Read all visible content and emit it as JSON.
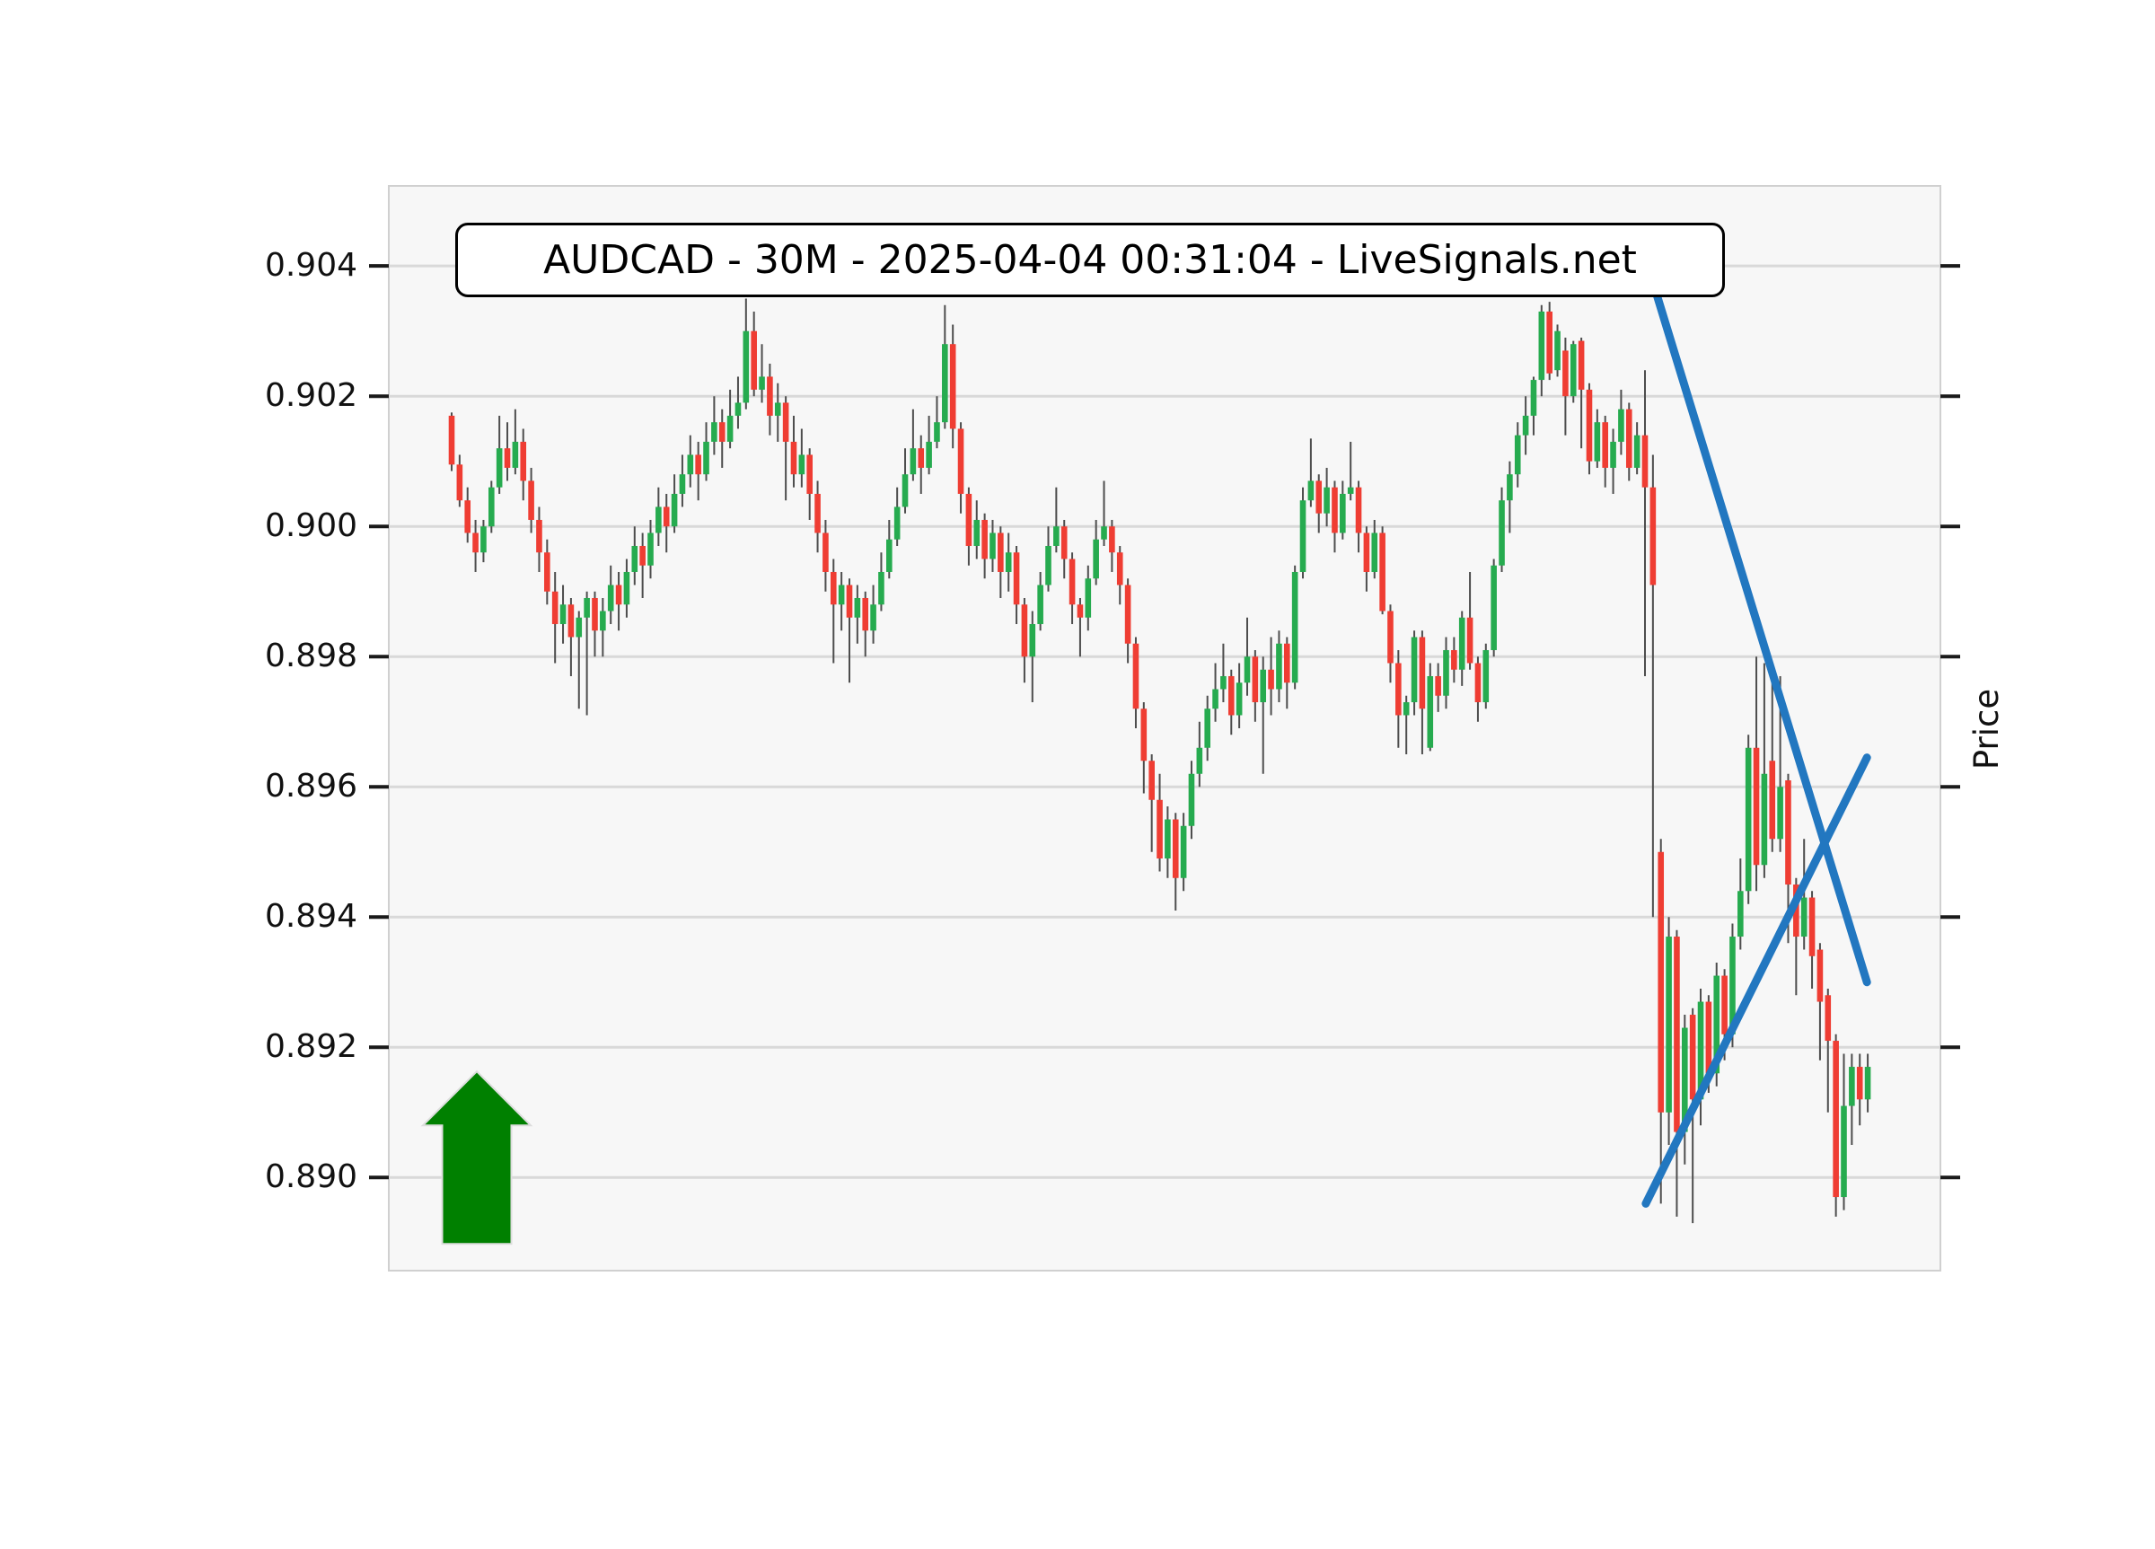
{
  "title": "AUDCAD - 30M - 2025-04-04 00:31:04 - LiveSignals.net",
  "y_axis": {
    "label": "Price",
    "tick_labels": [
      "0.904",
      "0.902",
      "0.900",
      "0.898",
      "0.896",
      "0.894",
      "0.892",
      "0.890"
    ]
  },
  "chart_data": {
    "type": "candlestick",
    "symbol": "AUDCAD",
    "timeframe": "30M",
    "timestamp": "2025-04-04 00:31:04",
    "source": "LiveSignals.net",
    "ylabel": "Price",
    "xlabel": "",
    "grid": true,
    "ylim": [
      0.88857,
      0.90523
    ],
    "yticks": [
      0.89,
      0.892,
      0.894,
      0.896,
      0.898,
      0.9,
      0.902,
      0.904
    ],
    "candles": [
      [
        0.9017,
        0.90175,
        0.90085,
        0.90095
      ],
      [
        0.90095,
        0.9011,
        0.9003,
        0.9004
      ],
      [
        0.9004,
        0.9006,
        0.89975,
        0.8999
      ],
      [
        0.8999,
        0.9001,
        0.8993,
        0.8996
      ],
      [
        0.8996,
        0.9001,
        0.89945,
        0.9
      ],
      [
        0.9,
        0.9007,
        0.8999,
        0.9006
      ],
      [
        0.9006,
        0.9017,
        0.9005,
        0.9012
      ],
      [
        0.9012,
        0.9016,
        0.9007,
        0.9009
      ],
      [
        0.9009,
        0.9018,
        0.9008,
        0.9013
      ],
      [
        0.9013,
        0.9015,
        0.9004,
        0.9007
      ],
      [
        0.9007,
        0.9009,
        0.8999,
        0.9001
      ],
      [
        0.9001,
        0.9003,
        0.8993,
        0.8996
      ],
      [
        0.8996,
        0.8998,
        0.8988,
        0.899
      ],
      [
        0.899,
        0.8993,
        0.8979,
        0.8985
      ],
      [
        0.8985,
        0.8991,
        0.8982,
        0.8988
      ],
      [
        0.8988,
        0.8989,
        0.8977,
        0.8983
      ],
      [
        0.8983,
        0.8987,
        0.8972,
        0.8986
      ],
      [
        0.8986,
        0.899,
        0.8971,
        0.8989
      ],
      [
        0.8989,
        0.899,
        0.898,
        0.8984
      ],
      [
        0.8984,
        0.8989,
        0.898,
        0.8987
      ],
      [
        0.8987,
        0.8994,
        0.8985,
        0.8991
      ],
      [
        0.8991,
        0.8993,
        0.8984,
        0.8988
      ],
      [
        0.8988,
        0.8995,
        0.8986,
        0.8993
      ],
      [
        0.8993,
        0.9,
        0.8991,
        0.8997
      ],
      [
        0.8997,
        0.8999,
        0.8989,
        0.8994
      ],
      [
        0.8994,
        0.9001,
        0.8992,
        0.8999
      ],
      [
        0.8999,
        0.9006,
        0.8997,
        0.9003
      ],
      [
        0.9003,
        0.9005,
        0.8996,
        0.9
      ],
      [
        0.9,
        0.9008,
        0.8999,
        0.9005
      ],
      [
        0.9005,
        0.9011,
        0.9003,
        0.9008
      ],
      [
        0.9008,
        0.9014,
        0.9006,
        0.9011
      ],
      [
        0.9011,
        0.9013,
        0.9004,
        0.9008
      ],
      [
        0.9008,
        0.9016,
        0.9007,
        0.9013
      ],
      [
        0.9013,
        0.902,
        0.9011,
        0.9016
      ],
      [
        0.9016,
        0.9018,
        0.9009,
        0.9013
      ],
      [
        0.9013,
        0.9021,
        0.9012,
        0.9017
      ],
      [
        0.9017,
        0.9023,
        0.9015,
        0.9019
      ],
      [
        0.9019,
        0.9035,
        0.9018,
        0.903
      ],
      [
        0.903,
        0.9033,
        0.902,
        0.9021
      ],
      [
        0.9021,
        0.9028,
        0.9019,
        0.9023
      ],
      [
        0.9023,
        0.9025,
        0.9014,
        0.9017
      ],
      [
        0.9017,
        0.9022,
        0.9013,
        0.9019
      ],
      [
        0.9019,
        0.902,
        0.9004,
        0.9013
      ],
      [
        0.9013,
        0.9017,
        0.9006,
        0.9008
      ],
      [
        0.9008,
        0.9015,
        0.9006,
        0.9011
      ],
      [
        0.9011,
        0.9012,
        0.9001,
        0.9005
      ],
      [
        0.9005,
        0.9007,
        0.8996,
        0.8999
      ],
      [
        0.8999,
        0.9001,
        0.899,
        0.8993
      ],
      [
        0.8993,
        0.8995,
        0.8979,
        0.8988
      ],
      [
        0.8988,
        0.8993,
        0.8984,
        0.8991
      ],
      [
        0.8991,
        0.8992,
        0.8976,
        0.8986
      ],
      [
        0.8986,
        0.8991,
        0.8982,
        0.8989
      ],
      [
        0.8989,
        0.899,
        0.898,
        0.8984
      ],
      [
        0.8984,
        0.8991,
        0.8982,
        0.8988
      ],
      [
        0.8988,
        0.8996,
        0.8987,
        0.8993
      ],
      [
        0.8993,
        0.9001,
        0.8992,
        0.8998
      ],
      [
        0.8998,
        0.9006,
        0.8997,
        0.9003
      ],
      [
        0.9003,
        0.9012,
        0.9002,
        0.9008
      ],
      [
        0.9008,
        0.9018,
        0.9007,
        0.9012
      ],
      [
        0.9012,
        0.9014,
        0.9005,
        0.9009
      ],
      [
        0.9009,
        0.9017,
        0.9008,
        0.9013
      ],
      [
        0.9013,
        0.902,
        0.9012,
        0.9016
      ],
      [
        0.9016,
        0.9034,
        0.9015,
        0.9028
      ],
      [
        0.9028,
        0.9031,
        0.9012,
        0.9015
      ],
      [
        0.9015,
        0.9016,
        0.9002,
        0.9005
      ],
      [
        0.9005,
        0.9006,
        0.8994,
        0.8997
      ],
      [
        0.8997,
        0.9004,
        0.8995,
        0.9001
      ],
      [
        0.9001,
        0.9002,
        0.8992,
        0.8995
      ],
      [
        0.8995,
        0.9001,
        0.8993,
        0.8999
      ],
      [
        0.8999,
        0.9,
        0.8989,
        0.8993
      ],
      [
        0.8993,
        0.8999,
        0.899,
        0.8996
      ],
      [
        0.8996,
        0.8997,
        0.8985,
        0.8988
      ],
      [
        0.8988,
        0.8989,
        0.8976,
        0.898
      ],
      [
        0.898,
        0.8987,
        0.8973,
        0.8985
      ],
      [
        0.8985,
        0.8993,
        0.8984,
        0.8991
      ],
      [
        0.8991,
        0.9,
        0.899,
        0.8997
      ],
      [
        0.8997,
        0.9006,
        0.8996,
        0.9
      ],
      [
        0.9,
        0.9001,
        0.8992,
        0.8995
      ],
      [
        0.8995,
        0.8996,
        0.8985,
        0.8988
      ],
      [
        0.8988,
        0.8989,
        0.898,
        0.8986
      ],
      [
        0.8986,
        0.8994,
        0.8984,
        0.8992
      ],
      [
        0.8992,
        0.9001,
        0.8991,
        0.8998
      ],
      [
        0.8998,
        0.9007,
        0.8997,
        0.9
      ],
      [
        0.9,
        0.9001,
        0.8993,
        0.8996
      ],
      [
        0.8996,
        0.8997,
        0.8988,
        0.8991
      ],
      [
        0.8991,
        0.8992,
        0.8979,
        0.8982
      ],
      [
        0.8982,
        0.8983,
        0.8969,
        0.8972
      ],
      [
        0.8972,
        0.8973,
        0.8959,
        0.8964
      ],
      [
        0.8964,
        0.8965,
        0.895,
        0.8958
      ],
      [
        0.8958,
        0.8962,
        0.8947,
        0.8949
      ],
      [
        0.8949,
        0.8957,
        0.8946,
        0.8955
      ],
      [
        0.8955,
        0.8956,
        0.8941,
        0.8946
      ],
      [
        0.8946,
        0.8956,
        0.8944,
        0.8954
      ],
      [
        0.8954,
        0.8964,
        0.8952,
        0.8962
      ],
      [
        0.8962,
        0.897,
        0.896,
        0.8966
      ],
      [
        0.8966,
        0.8974,
        0.8964,
        0.8972
      ],
      [
        0.8972,
        0.8979,
        0.897,
        0.8975
      ],
      [
        0.8975,
        0.8982,
        0.8973,
        0.8977
      ],
      [
        0.8977,
        0.8978,
        0.8968,
        0.8971
      ],
      [
        0.8971,
        0.8979,
        0.8969,
        0.8976
      ],
      [
        0.8976,
        0.8986,
        0.8974,
        0.898
      ],
      [
        0.898,
        0.8981,
        0.897,
        0.8973
      ],
      [
        0.8973,
        0.898,
        0.8962,
        0.8978
      ],
      [
        0.8978,
        0.8983,
        0.8971,
        0.8975
      ],
      [
        0.8975,
        0.8984,
        0.8973,
        0.8982
      ],
      [
        0.8982,
        0.8983,
        0.8972,
        0.8976
      ],
      [
        0.8976,
        0.8994,
        0.8975,
        0.8993
      ],
      [
        0.8993,
        0.9006,
        0.8992,
        0.9004
      ],
      [
        0.9004,
        0.90135,
        0.9003,
        0.9007
      ],
      [
        0.9007,
        0.9008,
        0.8999,
        0.9002
      ],
      [
        0.9002,
        0.9009,
        0.9,
        0.9006
      ],
      [
        0.9006,
        0.9007,
        0.8996,
        0.8999
      ],
      [
        0.8999,
        0.9007,
        0.8998,
        0.9005
      ],
      [
        0.9005,
        0.9013,
        0.9004,
        0.9006
      ],
      [
        0.9006,
        0.9007,
        0.8996,
        0.8999
      ],
      [
        0.8999,
        0.9,
        0.899,
        0.8993
      ],
      [
        0.8993,
        0.9001,
        0.8992,
        0.8999
      ],
      [
        0.8999,
        0.9,
        0.89865,
        0.8987
      ],
      [
        0.8987,
        0.8988,
        0.8976,
        0.8979
      ],
      [
        0.8979,
        0.8981,
        0.8966,
        0.8971
      ],
      [
        0.8971,
        0.8974,
        0.8965,
        0.8973
      ],
      [
        0.8973,
        0.8984,
        0.8971,
        0.8983
      ],
      [
        0.8983,
        0.8984,
        0.8965,
        0.8972
      ],
      [
        0.8966,
        0.8979,
        0.89655,
        0.8977
      ],
      [
        0.8977,
        0.8979,
        0.89715,
        0.8974
      ],
      [
        0.8974,
        0.8983,
        0.8972,
        0.8981
      ],
      [
        0.8981,
        0.8983,
        0.8976,
        0.8978
      ],
      [
        0.8978,
        0.8987,
        0.89755,
        0.8986
      ],
      [
        0.8986,
        0.8993,
        0.8978,
        0.8979
      ],
      [
        0.8979,
        0.898,
        0.897,
        0.8973
      ],
      [
        0.8973,
        0.8982,
        0.8972,
        0.8981
      ],
      [
        0.8981,
        0.8995,
        0.898,
        0.8994
      ],
      [
        0.8994,
        0.9006,
        0.8993,
        0.9004
      ],
      [
        0.9004,
        0.901,
        0.8999,
        0.9008
      ],
      [
        0.9008,
        0.9016,
        0.9006,
        0.9014
      ],
      [
        0.9014,
        0.902,
        0.9011,
        0.9017
      ],
      [
        0.9017,
        0.9023,
        0.9014,
        0.90225
      ],
      [
        0.90225,
        0.9034,
        0.902,
        0.9033
      ],
      [
        0.9033,
        0.90345,
        0.90225,
        0.90235
      ],
      [
        0.9024,
        0.9031,
        0.9023,
        0.903
      ],
      [
        0.9027,
        0.9029,
        0.9014,
        0.902
      ],
      [
        0.902,
        0.90285,
        0.9019,
        0.9028
      ],
      [
        0.90285,
        0.9029,
        0.9012,
        0.9021
      ],
      [
        0.9021,
        0.9022,
        0.9008,
        0.901
      ],
      [
        0.901,
        0.9018,
        0.9009,
        0.9016
      ],
      [
        0.9016,
        0.9017,
        0.9006,
        0.9009
      ],
      [
        0.9009,
        0.9015,
        0.9005,
        0.9013
      ],
      [
        0.9013,
        0.9021,
        0.9011,
        0.9018
      ],
      [
        0.9018,
        0.9019,
        0.9007,
        0.9009
      ],
      [
        0.9009,
        0.9016,
        0.9008,
        0.9014
      ],
      [
        0.9014,
        0.9024,
        0.8977,
        0.9006
      ],
      [
        0.9006,
        0.9011,
        0.894,
        0.8991
      ],
      [
        0.895,
        0.8952,
        0.8896,
        0.891
      ],
      [
        0.891,
        0.894,
        0.8905,
        0.8937
      ],
      [
        0.8937,
        0.8938,
        0.8894,
        0.8907
      ],
      [
        0.8907,
        0.8925,
        0.8902,
        0.8923
      ],
      [
        0.8925,
        0.8926,
        0.8893,
        0.8912
      ],
      [
        0.8912,
        0.8929,
        0.8908,
        0.8927
      ],
      [
        0.8927,
        0.8928,
        0.8913,
        0.8916
      ],
      [
        0.8916,
        0.8933,
        0.8914,
        0.8931
      ],
      [
        0.8931,
        0.8932,
        0.8918,
        0.8922
      ],
      [
        0.8922,
        0.8939,
        0.892,
        0.8937
      ],
      [
        0.8937,
        0.8949,
        0.8935,
        0.8944
      ],
      [
        0.8944,
        0.8968,
        0.8942,
        0.8966
      ],
      [
        0.8966,
        0.898,
        0.8944,
        0.8948
      ],
      [
        0.8948,
        0.8979,
        0.8946,
        0.8962
      ],
      [
        0.8964,
        0.8978,
        0.895,
        0.8952
      ],
      [
        0.8952,
        0.8977,
        0.895,
        0.896
      ],
      [
        0.8961,
        0.8962,
        0.8936,
        0.8945
      ],
      [
        0.8945,
        0.8946,
        0.8928,
        0.8937
      ],
      [
        0.8937,
        0.8952,
        0.8935,
        0.8943
      ],
      [
        0.8943,
        0.8944,
        0.8929,
        0.8934
      ],
      [
        0.8935,
        0.8936,
        0.8918,
        0.8927
      ],
      [
        0.8928,
        0.8929,
        0.891,
        0.8921
      ],
      [
        0.8921,
        0.8922,
        0.8894,
        0.8897
      ],
      [
        0.8897,
        0.8919,
        0.8895,
        0.8911
      ],
      [
        0.8911,
        0.8919,
        0.8905,
        0.8917
      ],
      [
        0.8917,
        0.8919,
        0.8908,
        0.8912
      ],
      [
        0.8912,
        0.8919,
        0.891,
        0.8917
      ]
    ],
    "annotations": {
      "trendlines": [
        {
          "name": "descending-trendline",
          "x1_index": 151.5,
          "price1": 0.90355,
          "x2_index": 177.9,
          "price2": 0.893
        },
        {
          "name": "ascending-trendline",
          "x1_index": 150.1,
          "price1": 0.8896,
          "x2_index": 177.9,
          "price2": 0.89645
        }
      ],
      "arrow": {
        "type": "up-arrow",
        "direction": "up",
        "x_index": 3.16,
        "tip_price": 0.89163,
        "head_base_price": 0.8908,
        "base_price": 0.88898
      }
    },
    "legend": null,
    "colors": {
      "up": "#26ab4f",
      "down": "#ef3d33",
      "wick": "#4d4d4d",
      "trendline": "#2277c0",
      "arrow": "#008000",
      "grid": "#d9d9d9",
      "plot_bg": "#f7f7f7",
      "background": "#ffffff",
      "tick": "#1a1a1a",
      "text": "#111111"
    }
  }
}
